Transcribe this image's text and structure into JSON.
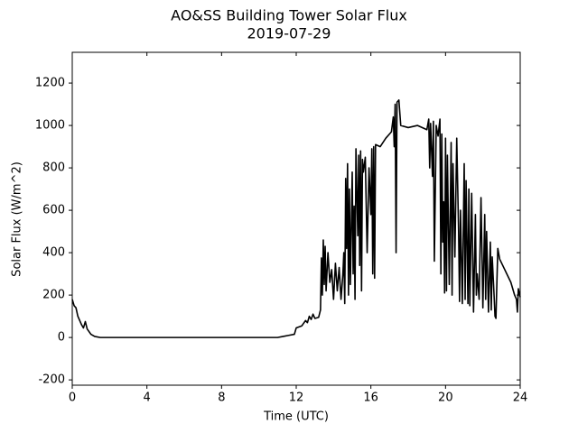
{
  "chart_data": {
    "type": "line",
    "title": "AO&SS Building Tower Solar Flux",
    "subtitle": "2019-07-29",
    "x_label": "Time (UTC)",
    "y_label": "Solar Flux (W/m^2)",
    "xlim": [
      0,
      24
    ],
    "xticks": [
      0,
      4,
      8,
      12,
      16,
      20,
      24
    ],
    "ylim": [
      -225,
      1345
    ],
    "yticks": [
      -200,
      0,
      200,
      400,
      600,
      800,
      1000,
      1200
    ],
    "color": "#000000",
    "x": [
      0,
      0.1,
      0.2,
      0.3,
      0.5,
      0.6,
      0.7,
      0.8,
      1.0,
      1.2,
      1.5,
      3,
      6,
      9,
      11,
      11.3,
      11.6,
      11.9,
      12.0,
      12.3,
      12.5,
      12.6,
      12.7,
      12.8,
      12.9,
      13.0,
      13.2,
      13.3,
      13.35,
      13.4,
      13.45,
      13.5,
      13.55,
      13.6,
      13.7,
      13.8,
      13.9,
      14.0,
      14.1,
      14.2,
      14.3,
      14.4,
      14.5,
      14.55,
      14.6,
      14.65,
      14.7,
      14.75,
      14.8,
      14.85,
      14.9,
      15.0,
      15.05,
      15.1,
      15.15,
      15.2,
      15.3,
      15.35,
      15.4,
      15.45,
      15.5,
      15.55,
      15.6,
      15.7,
      15.8,
      15.9,
      16.0,
      16.05,
      16.1,
      16.15,
      16.2,
      16.25,
      16.5,
      16.8,
      17.0,
      17.1,
      17.2,
      17.25,
      17.3,
      17.35,
      17.4,
      17.5,
      17.6,
      18,
      18.5,
      19,
      19.1,
      19.15,
      19.2,
      19.3,
      19.35,
      19.4,
      19.5,
      19.6,
      19.7,
      19.75,
      19.8,
      19.85,
      19.9,
      19.95,
      20.0,
      20.05,
      20.1,
      20.2,
      20.3,
      20.35,
      20.4,
      20.5,
      20.6,
      20.7,
      20.75,
      20.8,
      20.9,
      21.0,
      21.05,
      21.1,
      21.2,
      21.25,
      21.3,
      21.4,
      21.5,
      21.6,
      21.65,
      21.7,
      21.8,
      21.9,
      22.0,
      22.1,
      22.15,
      22.2,
      22.3,
      22.4,
      22.45,
      22.5,
      22.6,
      22.65,
      22.7,
      22.8,
      22.9,
      23.5,
      23.7,
      23.8,
      23.85,
      23.9,
      24.0
    ],
    "values": [
      180,
      150,
      140,
      100,
      60,
      45,
      75,
      40,
      15,
      5,
      0,
      0,
      0,
      0,
      0,
      5,
      10,
      15,
      45,
      55,
      80,
      70,
      100,
      85,
      110,
      90,
      95,
      130,
      375,
      200,
      460,
      250,
      430,
      220,
      400,
      260,
      320,
      180,
      350,
      220,
      330,
      180,
      300,
      400,
      160,
      750,
      420,
      820,
      200,
      700,
      250,
      780,
      300,
      620,
      180,
      890,
      480,
      860,
      340,
      880,
      220,
      840,
      780,
      850,
      400,
      800,
      580,
      890,
      300,
      900,
      280,
      910,
      900,
      940,
      960,
      970,
      1040,
      900,
      1100,
      400,
      1110,
      1120,
      1000,
      990,
      1000,
      980,
      1030,
      800,
      1010,
      760,
      1020,
      360,
      1000,
      950,
      1030,
      300,
      960,
      450,
      640,
      210,
      940,
      220,
      860,
      250,
      920,
      200,
      820,
      380,
      940,
      500,
      170,
      600,
      160,
      820,
      180,
      740,
      160,
      700,
      150,
      680,
      120,
      580,
      200,
      300,
      180,
      660,
      140,
      580,
      180,
      500,
      120,
      450,
      130,
      380,
      200,
      100,
      90,
      420,
      370,
      260,
      200,
      180,
      120,
      230,
      190
    ]
  }
}
